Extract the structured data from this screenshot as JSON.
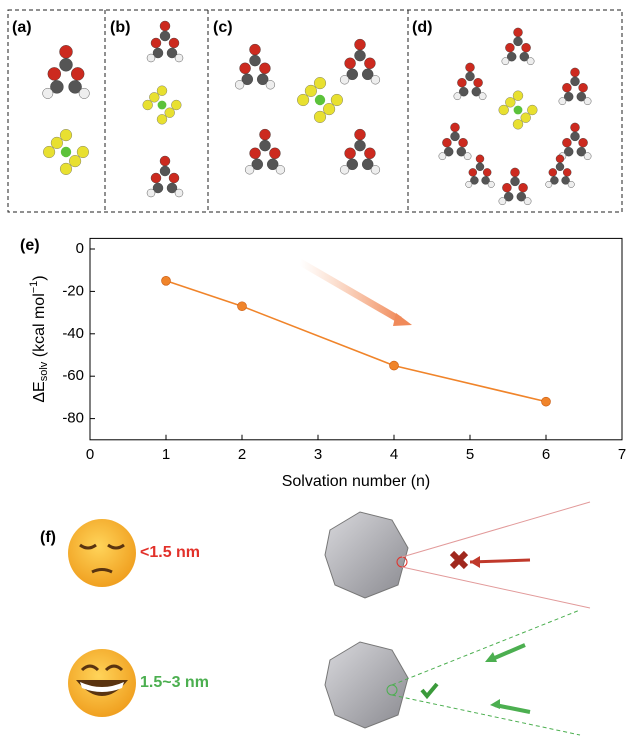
{
  "panel_labels": [
    "(a)",
    "(b)",
    "(c)",
    "(d)",
    "(f)"
  ],
  "annotations": [
    "<1.5 nm",
    "1.5~3 nm"
  ],
  "chart_data": {
    "type": "line",
    "panel_label": "(e)",
    "x_label": "Solvation number (n)",
    "y_label": {
      "main": "ΔE",
      "sub": "solv",
      "rest": " (kcal mol",
      "sup": "−1",
      "end": ")"
    },
    "x": [
      1,
      2,
      4,
      6
    ],
    "values": [
      -15,
      -27,
      -55,
      -72
    ],
    "color": "#f0842a",
    "xlim": [
      0,
      7
    ],
    "xticks": [
      0,
      1,
      2,
      3,
      4,
      5,
      6,
      7
    ],
    "ylim": [
      -90,
      5
    ],
    "yticks": [
      0,
      -20,
      -40,
      -60,
      -80
    ]
  }
}
